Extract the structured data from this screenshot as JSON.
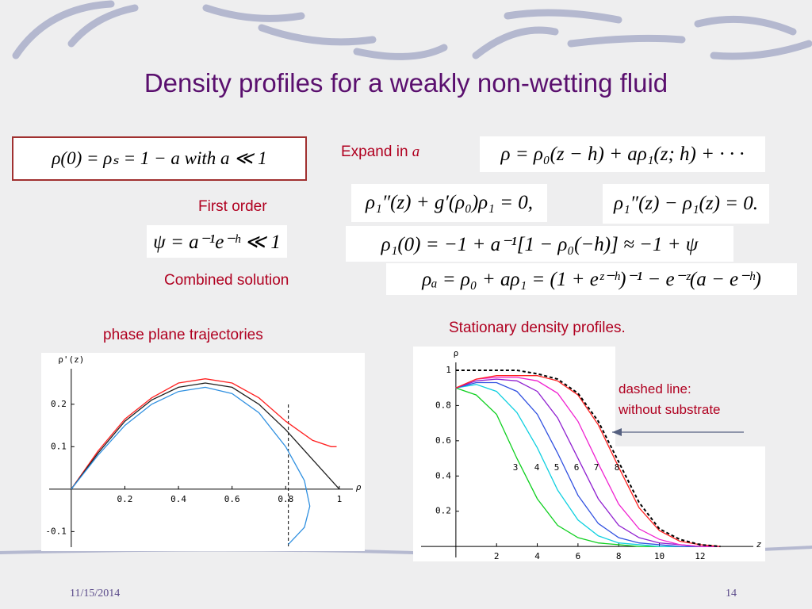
{
  "title": "Density profiles for a weakly non-wetting fluid",
  "equations": [
    "ρ(0) = ρₛ = 1 − a with a ≪ 1",
    "ρ = ρ₀(z − h) + aρ₁(z; h) + · · ·",
    "ρ₁″(z) + g′(ρ₀)ρ₁ = 0,",
    "ρ₁″(z) − ρ₁(z) = 0.",
    "ψ = a⁻¹e⁻ʰ ≪ 1",
    "ρ₁(0) = −1 + a⁻¹[1 − ρ₀(−h)] ≈ −1 + ψ",
    "ρₐ = ρ₀ + aρ₁ = (1 + eᶻ⁻ʰ)⁻¹ − e⁻ᶻ(a − e⁻ʰ)"
  ],
  "labels": {
    "expand": "Expand in",
    "expand_var": "a",
    "first_order": "First order",
    "combined": "Combined solution",
    "phase": "phase plane trajectories",
    "stationary": "Stationary density profiles.",
    "dashed1": "dashed line:",
    "dashed2": "without substrate"
  },
  "figures": [
    {
      "xlabel": "ρ",
      "ylabel": "ρ'(z)",
      "xlim": [
        -0.112,
        1.095
      ],
      "ylim": [
        -0.146,
        0.321
      ],
      "xticks": [
        0.2,
        0.4,
        0.6,
        0.8,
        1
      ],
      "yticks": [
        -0.1,
        0.1,
        0.2
      ],
      "dashed_x": 0.81,
      "series": [
        {
          "color": "#ff2020",
          "x": [
            0,
            0.1,
            0.2,
            0.3,
            0.4,
            0.5,
            0.6,
            0.7,
            0.8,
            0.9,
            0.97,
            0.99
          ],
          "y": [
            0,
            0.09,
            0.165,
            0.215,
            0.25,
            0.26,
            0.25,
            0.215,
            0.16,
            0.115,
            0.1,
            0.1
          ]
        },
        {
          "color": "#202020",
          "x": [
            0,
            0.1,
            0.2,
            0.3,
            0.4,
            0.5,
            0.6,
            0.7,
            0.8,
            0.9,
            1
          ],
          "y": [
            0,
            0.085,
            0.16,
            0.21,
            0.24,
            0.25,
            0.24,
            0.2,
            0.14,
            0.07,
            0
          ]
        },
        {
          "color": "#3090e0",
          "x": [
            0,
            0.1,
            0.2,
            0.3,
            0.4,
            0.5,
            0.6,
            0.7,
            0.8,
            0.87,
            0.89,
            0.87,
            0.81
          ],
          "y": [
            0,
            0.08,
            0.15,
            0.2,
            0.23,
            0.24,
            0.225,
            0.18,
            0.1,
            0.02,
            -0.04,
            -0.09,
            -0.13
          ]
        }
      ]
    },
    {
      "xlabel": "z",
      "ylabel": "ρ",
      "xlim": [
        -2.1,
        15.2
      ],
      "ylim": [
        -0.085,
        1.135
      ],
      "xticks": [
        2,
        4,
        6,
        8,
        10,
        12
      ],
      "yticks": [
        0.2,
        0.4,
        0.6,
        0.8,
        1
      ],
      "x": [
        0,
        1,
        2,
        3,
        4,
        5,
        6,
        7,
        8,
        9,
        10,
        11,
        12,
        13
      ],
      "series": [
        {
          "name": "3",
          "color": "#10d020",
          "values": [
            0.9,
            0.86,
            0.75,
            0.5,
            0.27,
            0.12,
            0.05,
            0.02,
            0.01,
            0,
            0,
            0,
            0,
            0
          ]
        },
        {
          "name": "4",
          "color": "#10d0e0",
          "values": [
            0.9,
            0.92,
            0.88,
            0.76,
            0.56,
            0.32,
            0.15,
            0.06,
            0.02,
            0.01,
            0,
            0,
            0,
            0
          ]
        },
        {
          "name": "5",
          "color": "#3050e0",
          "values": [
            0.9,
            0.93,
            0.93,
            0.88,
            0.75,
            0.53,
            0.29,
            0.13,
            0.05,
            0.02,
            0.01,
            0,
            0,
            0
          ]
        },
        {
          "name": "6",
          "color": "#9020d0",
          "values": [
            0.9,
            0.94,
            0.95,
            0.94,
            0.88,
            0.73,
            0.5,
            0.27,
            0.12,
            0.05,
            0.02,
            0.01,
            0,
            0
          ]
        },
        {
          "name": "7",
          "color": "#f020d0",
          "values": [
            0.9,
            0.95,
            0.96,
            0.96,
            0.94,
            0.87,
            0.71,
            0.47,
            0.24,
            0.1,
            0.04,
            0.01,
            0,
            0
          ]
        },
        {
          "name": "8",
          "color": "#ff2020",
          "values": [
            0.9,
            0.95,
            0.97,
            0.97,
            0.97,
            0.94,
            0.86,
            0.69,
            0.45,
            0.22,
            0.09,
            0.03,
            0.01,
            0
          ]
        },
        {
          "color": "#000000",
          "dashed": true,
          "values": [
            1,
            1,
            1,
            1,
            0.98,
            0.95,
            0.87,
            0.71,
            0.48,
            0.25,
            0.1,
            0.04,
            0.01,
            0
          ]
        }
      ]
    }
  ],
  "footer": {
    "date": "11/15/2014",
    "page": "14"
  }
}
